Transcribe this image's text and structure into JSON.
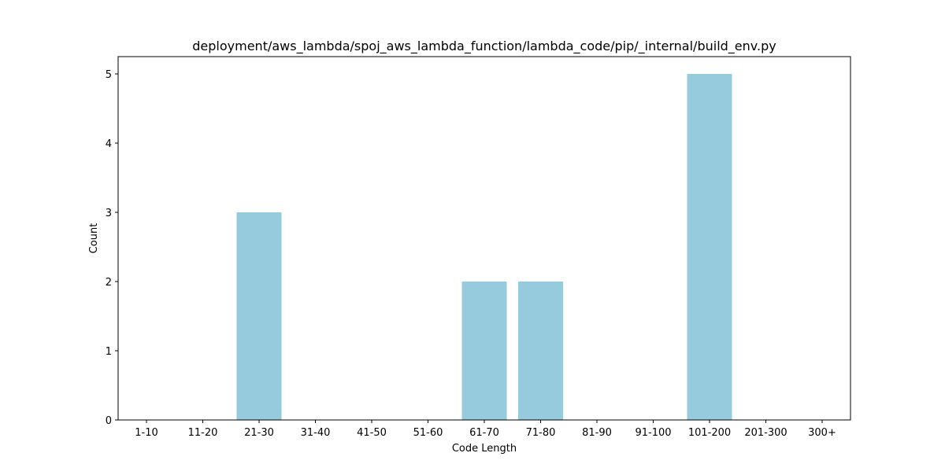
{
  "chart_data": {
    "type": "bar",
    "title": "deployment/aws_lambda/spoj_aws_lambda_function/lambda_code/pip/_internal/build_env.py",
    "xlabel": "Code Length",
    "ylabel": "Count",
    "categories": [
      "1-10",
      "11-20",
      "21-30",
      "31-40",
      "41-50",
      "51-60",
      "61-70",
      "71-80",
      "81-90",
      "91-100",
      "101-200",
      "201-300",
      "300+"
    ],
    "values": [
      0,
      0,
      3,
      0,
      0,
      0,
      2,
      2,
      0,
      0,
      5,
      0,
      0
    ],
    "yticks": [
      0,
      1,
      2,
      3,
      4,
      5
    ],
    "ylim": [
      0,
      5.25
    ],
    "bar_color": "#96cadd",
    "grid": false,
    "legend": "none"
  }
}
